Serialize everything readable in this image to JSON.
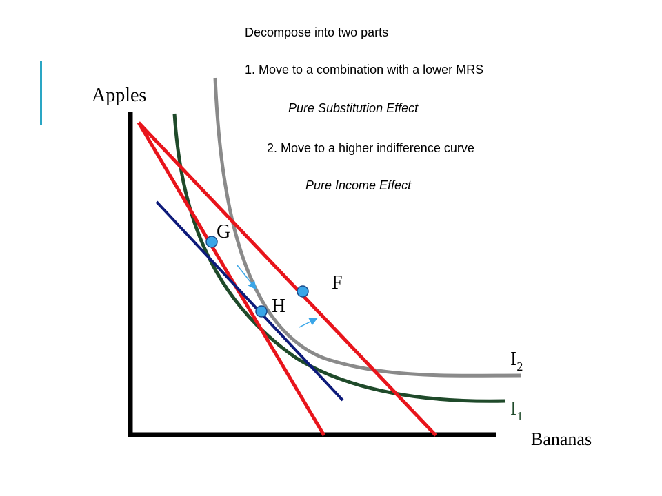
{
  "notes": {
    "heading": "Decompose into two parts",
    "step1": "1. Move to a combination with a lower MRS",
    "effect1": "Pure Substitution Effect",
    "step2": "2. Move to a higher indifference curve",
    "effect2": "Pure Income Effect"
  },
  "axes": {
    "y_label": "Apples",
    "x_label": "Bananas"
  },
  "points": {
    "G": "G",
    "F": "F",
    "H": "H"
  },
  "curves": {
    "I2": {
      "letter": "I",
      "sub": "2"
    },
    "I1": {
      "letter": "I",
      "sub": "1"
    }
  },
  "colors": {
    "budget_line": "#e8141b",
    "compensated_line": "#0d1a7a",
    "indifference_I1": "#1f4a2a",
    "indifference_I2": "#8a8a8a",
    "point_fill": "#3aa6e8",
    "arrow": "#3aa6e8",
    "accent": "#2aa6c4",
    "axis": "#000000"
  }
}
